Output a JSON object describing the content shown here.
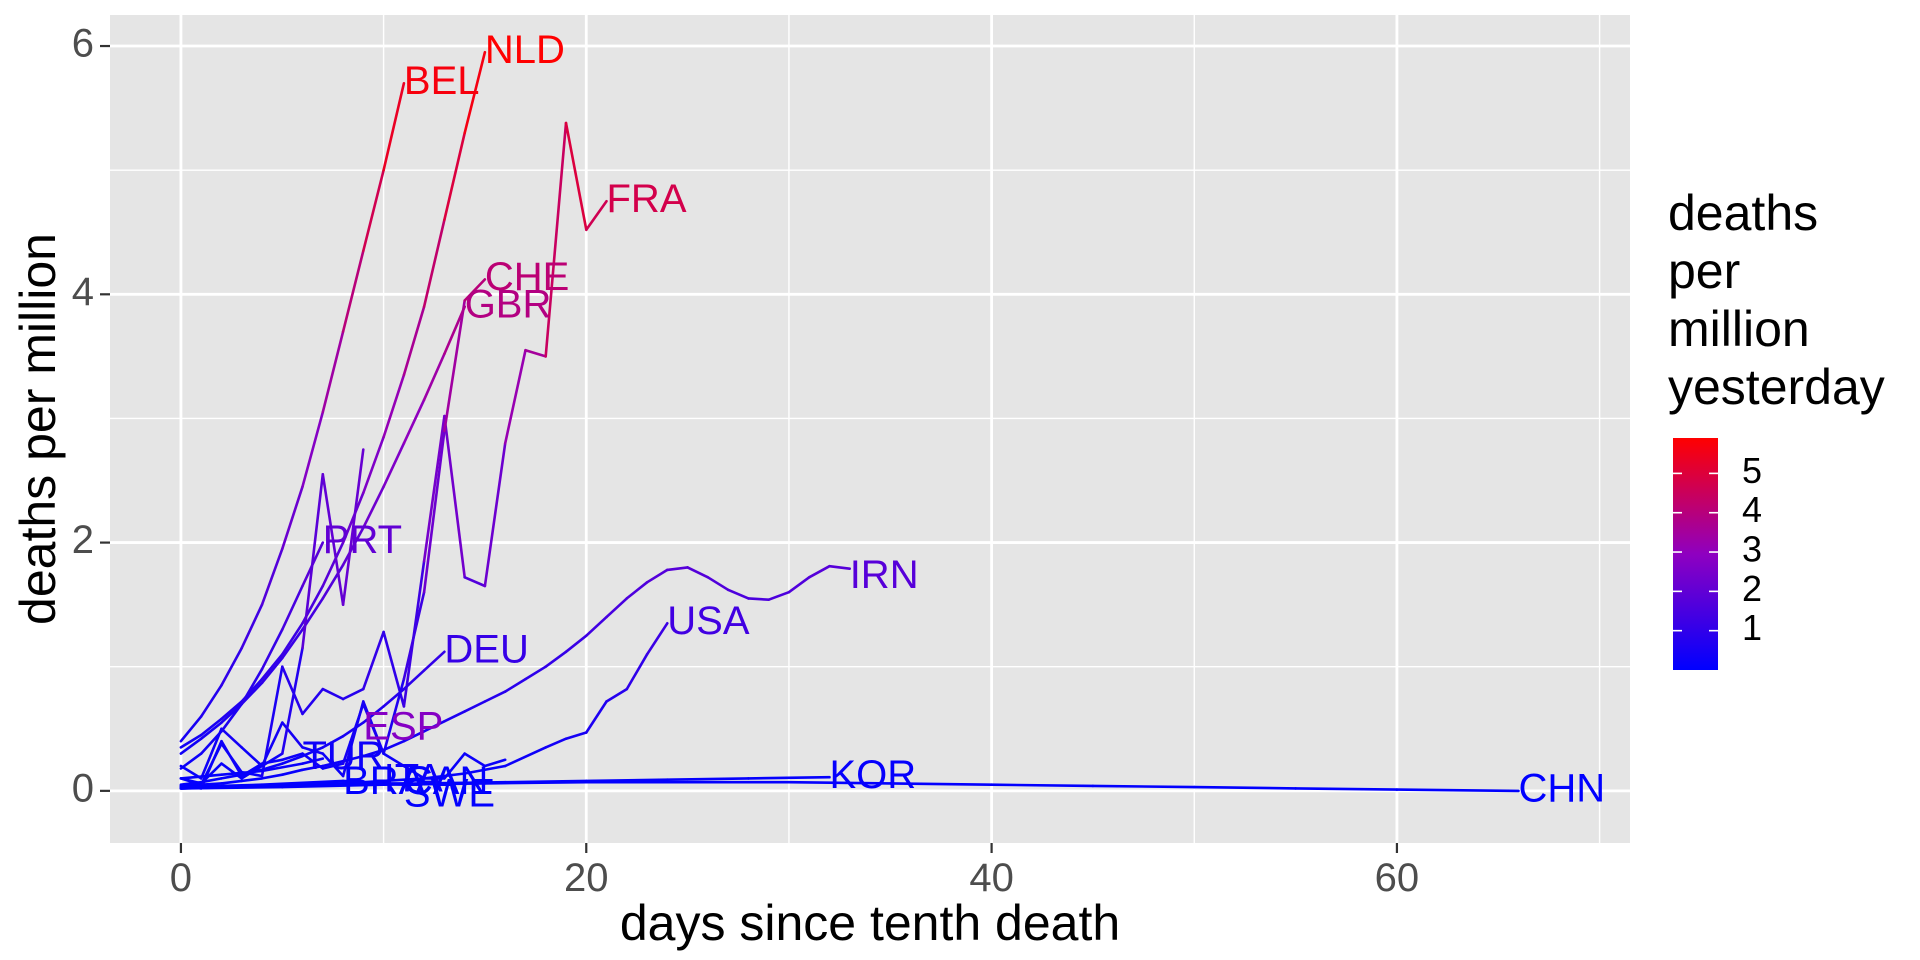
{
  "chart_data": {
    "type": "line",
    "title": "",
    "xlabel": "days since tenth death",
    "ylabel": "deaths per million",
    "xlim": [
      -3.5,
      71.5
    ],
    "ylim": [
      -0.42,
      6.25
    ],
    "x_ticks": [
      0,
      20,
      40,
      60
    ],
    "x_tick_labels": [
      "0",
      "20",
      "40",
      "60"
    ],
    "x_minor_ticks": [
      10,
      30,
      50,
      70
    ],
    "y_ticks": [
      0,
      2,
      4,
      6
    ],
    "y_tick_labels": [
      "0",
      "2",
      "4",
      "6"
    ],
    "y_minor_ticks": [
      1,
      3,
      5
    ],
    "grid": true,
    "panel_background": "#e5e5e5",
    "grid_color": "#ffffff",
    "color_scale": {
      "low": "#0000ff",
      "mid": "#8f00c0",
      "high": "#ff0000",
      "min": 0,
      "max": 5.9
    },
    "legend": {
      "title_lines": [
        "deaths",
        "per",
        "million",
        "yesterday"
      ],
      "ticks": [
        1,
        2,
        3,
        4,
        5
      ],
      "tick_labels": [
        "1",
        "2",
        "3",
        "4",
        "5"
      ],
      "placement": "right"
    },
    "series": [
      {
        "name": "NLD",
        "x": [
          0,
          1,
          2,
          3,
          4,
          5,
          6,
          7,
          8,
          9,
          10,
          11,
          12,
          13,
          14,
          15
        ],
        "y": [
          0.35,
          0.45,
          0.58,
          0.72,
          0.9,
          1.1,
          1.35,
          1.65,
          2.0,
          2.4,
          2.85,
          3.35,
          3.9,
          4.6,
          5.3,
          5.95
        ],
        "label_x": 15,
        "label_y": 5.95
      },
      {
        "name": "BEL",
        "x": [
          0,
          1,
          2,
          3,
          4,
          5,
          6,
          7,
          8,
          9,
          10,
          11
        ],
        "y": [
          0.4,
          0.6,
          0.85,
          1.15,
          1.5,
          1.95,
          2.45,
          3.05,
          3.7,
          4.35,
          5.0,
          5.7
        ],
        "label_x": 11,
        "label_y": 5.7
      },
      {
        "name": "FRA",
        "x": [
          0,
          1,
          2,
          3,
          4,
          5,
          6,
          7,
          8,
          9,
          10,
          11,
          12,
          13,
          14,
          15,
          16,
          17,
          18,
          19,
          20,
          21
        ],
        "y": [
          0.1,
          0.05,
          0.38,
          0.15,
          0.12,
          1.0,
          0.62,
          0.82,
          0.74,
          0.82,
          1.28,
          0.68,
          1.85,
          3.02,
          1.72,
          1.65,
          2.8,
          3.55,
          3.5,
          5.38,
          4.52,
          4.75
        ],
        "label_x": 21,
        "label_y": 4.75
      },
      {
        "name": "CHE",
        "x": [
          0,
          1,
          2,
          3,
          4,
          5,
          6,
          7,
          8,
          9,
          10,
          11,
          12,
          13,
          14,
          15
        ],
        "y": [
          0.1,
          0.06,
          0.22,
          0.1,
          0.2,
          0.55,
          0.35,
          0.3,
          0.12,
          0.72,
          0.3,
          0.9,
          1.6,
          2.9,
          3.95,
          4.12
        ],
        "label_x": 15,
        "label_y": 4.12
      },
      {
        "name": "GBR",
        "x": [
          0,
          1,
          2,
          3,
          4,
          5,
          6,
          7,
          8,
          9,
          10,
          11,
          12,
          13,
          14
        ],
        "y": [
          0.3,
          0.42,
          0.55,
          0.7,
          0.87,
          1.07,
          1.3,
          1.55,
          1.82,
          2.12,
          2.45,
          2.8,
          3.15,
          3.52,
          3.9
        ],
        "label_x": 14,
        "label_y": 3.9
      },
      {
        "name": "PRT",
        "x": [
          0,
          1,
          2,
          3,
          4,
          5,
          6,
          7
        ],
        "y": [
          0.18,
          0.3,
          0.48,
          0.7,
          0.98,
          1.3,
          1.65,
          2.0
        ],
        "label_x": 7,
        "label_y": 2.0
      },
      {
        "name": "IRN",
        "x": [
          0,
          1,
          2,
          3,
          4,
          5,
          6,
          7,
          8,
          9,
          10,
          11,
          12,
          13,
          14,
          15,
          16,
          17,
          18,
          19,
          20,
          21,
          22,
          23,
          24,
          25,
          26,
          27,
          28,
          29,
          30,
          31,
          32,
          33
        ],
        "y": [
          0.04,
          0.05,
          0.06,
          0.08,
          0.1,
          0.13,
          0.17,
          0.2,
          0.24,
          0.28,
          0.33,
          0.4,
          0.48,
          0.56,
          0.64,
          0.72,
          0.8,
          0.9,
          1.0,
          1.12,
          1.25,
          1.4,
          1.55,
          1.68,
          1.78,
          1.8,
          1.72,
          1.62,
          1.55,
          1.54,
          1.6,
          1.72,
          1.81,
          1.79
        ],
        "label_x": 33,
        "label_y": 1.72
      },
      {
        "name": "USA",
        "x": [
          0,
          2,
          4,
          6,
          8,
          10,
          12,
          14,
          16,
          18,
          19,
          20,
          21,
          22,
          23,
          24
        ],
        "y": [
          0.02,
          0.03,
          0.04,
          0.05,
          0.06,
          0.08,
          0.1,
          0.14,
          0.2,
          0.35,
          0.42,
          0.47,
          0.72,
          0.82,
          1.1,
          1.35
        ],
        "label_x": 24,
        "label_y": 1.35
      },
      {
        "name": "DEU",
        "x": [
          0,
          1,
          2,
          3,
          4,
          5,
          6,
          7,
          8,
          9,
          10,
          11,
          12,
          13
        ],
        "y": [
          0.05,
          0.07,
          0.1,
          0.13,
          0.17,
          0.22,
          0.28,
          0.35,
          0.44,
          0.55,
          0.68,
          0.82,
          0.97,
          1.12
        ],
        "label_x": 13,
        "label_y": 1.12
      },
      {
        "name": "ITA",
        "x": [
          0,
          1,
          2,
          3,
          4,
          5,
          6,
          7,
          8,
          9,
          10,
          11,
          12,
          13,
          14,
          15,
          16
        ],
        "y": [
          0.04,
          0.02,
          0.4,
          0.12,
          0.22,
          0.25,
          0.3,
          0.18,
          0.22,
          0.7,
          0.3,
          0.2,
          0.1,
          0.1,
          0.3,
          0.2,
          0.25
        ],
        "label_x": 10,
        "label_y": 0.08
      },
      {
        "name": "ESP",
        "x": [
          0,
          1,
          2,
          3,
          4,
          5,
          6,
          7,
          8,
          9
        ],
        "y": [
          0.2,
          0.1,
          0.5,
          0.35,
          0.2,
          0.3,
          1.15,
          2.55,
          1.5,
          2.75
        ],
        "label_x": 9,
        "label_y": 0.5
      },
      {
        "name": "TUR",
        "x": [
          0,
          2,
          4,
          6,
          7
        ],
        "y": [
          0.1,
          0.13,
          0.16,
          0.22,
          0.26
        ],
        "label_x": 6,
        "label_y": 0.26
      },
      {
        "name": "BRA",
        "x": [
          0,
          3,
          6,
          8
        ],
        "y": [
          0.02,
          0.04,
          0.05,
          0.06
        ],
        "label_x": 8,
        "label_y": 0.06
      },
      {
        "name": "CAN",
        "x": [
          0,
          3,
          6,
          9,
          11
        ],
        "y": [
          0.02,
          0.03,
          0.05,
          0.06,
          0.06
        ],
        "label_x": 11,
        "label_y": 0.06
      },
      {
        "name": "SWE",
        "x": [
          0,
          4,
          8,
          11
        ],
        "y": [
          0.03,
          0.05,
          0.08,
          0.05
        ],
        "label_x": 11,
        "label_y": -0.04
      },
      {
        "name": "KOR",
        "x": [
          0,
          4,
          8,
          12,
          16,
          20,
          24,
          28,
          32
        ],
        "y": [
          0.03,
          0.04,
          0.05,
          0.06,
          0.07,
          0.08,
          0.09,
          0.1,
          0.11
        ],
        "label_x": 32,
        "label_y": 0.11
      },
      {
        "name": "CHN",
        "x": [
          0,
          5,
          10,
          15,
          20,
          25,
          30,
          35,
          40,
          45,
          50,
          55,
          60,
          66
        ],
        "y": [
          0.02,
          0.03,
          0.05,
          0.06,
          0.07,
          0.07,
          0.07,
          0.06,
          0.05,
          0.04,
          0.03,
          0.02,
          0.01,
          0.0
        ],
        "label_x": 66,
        "label_y": 0.0
      }
    ]
  }
}
